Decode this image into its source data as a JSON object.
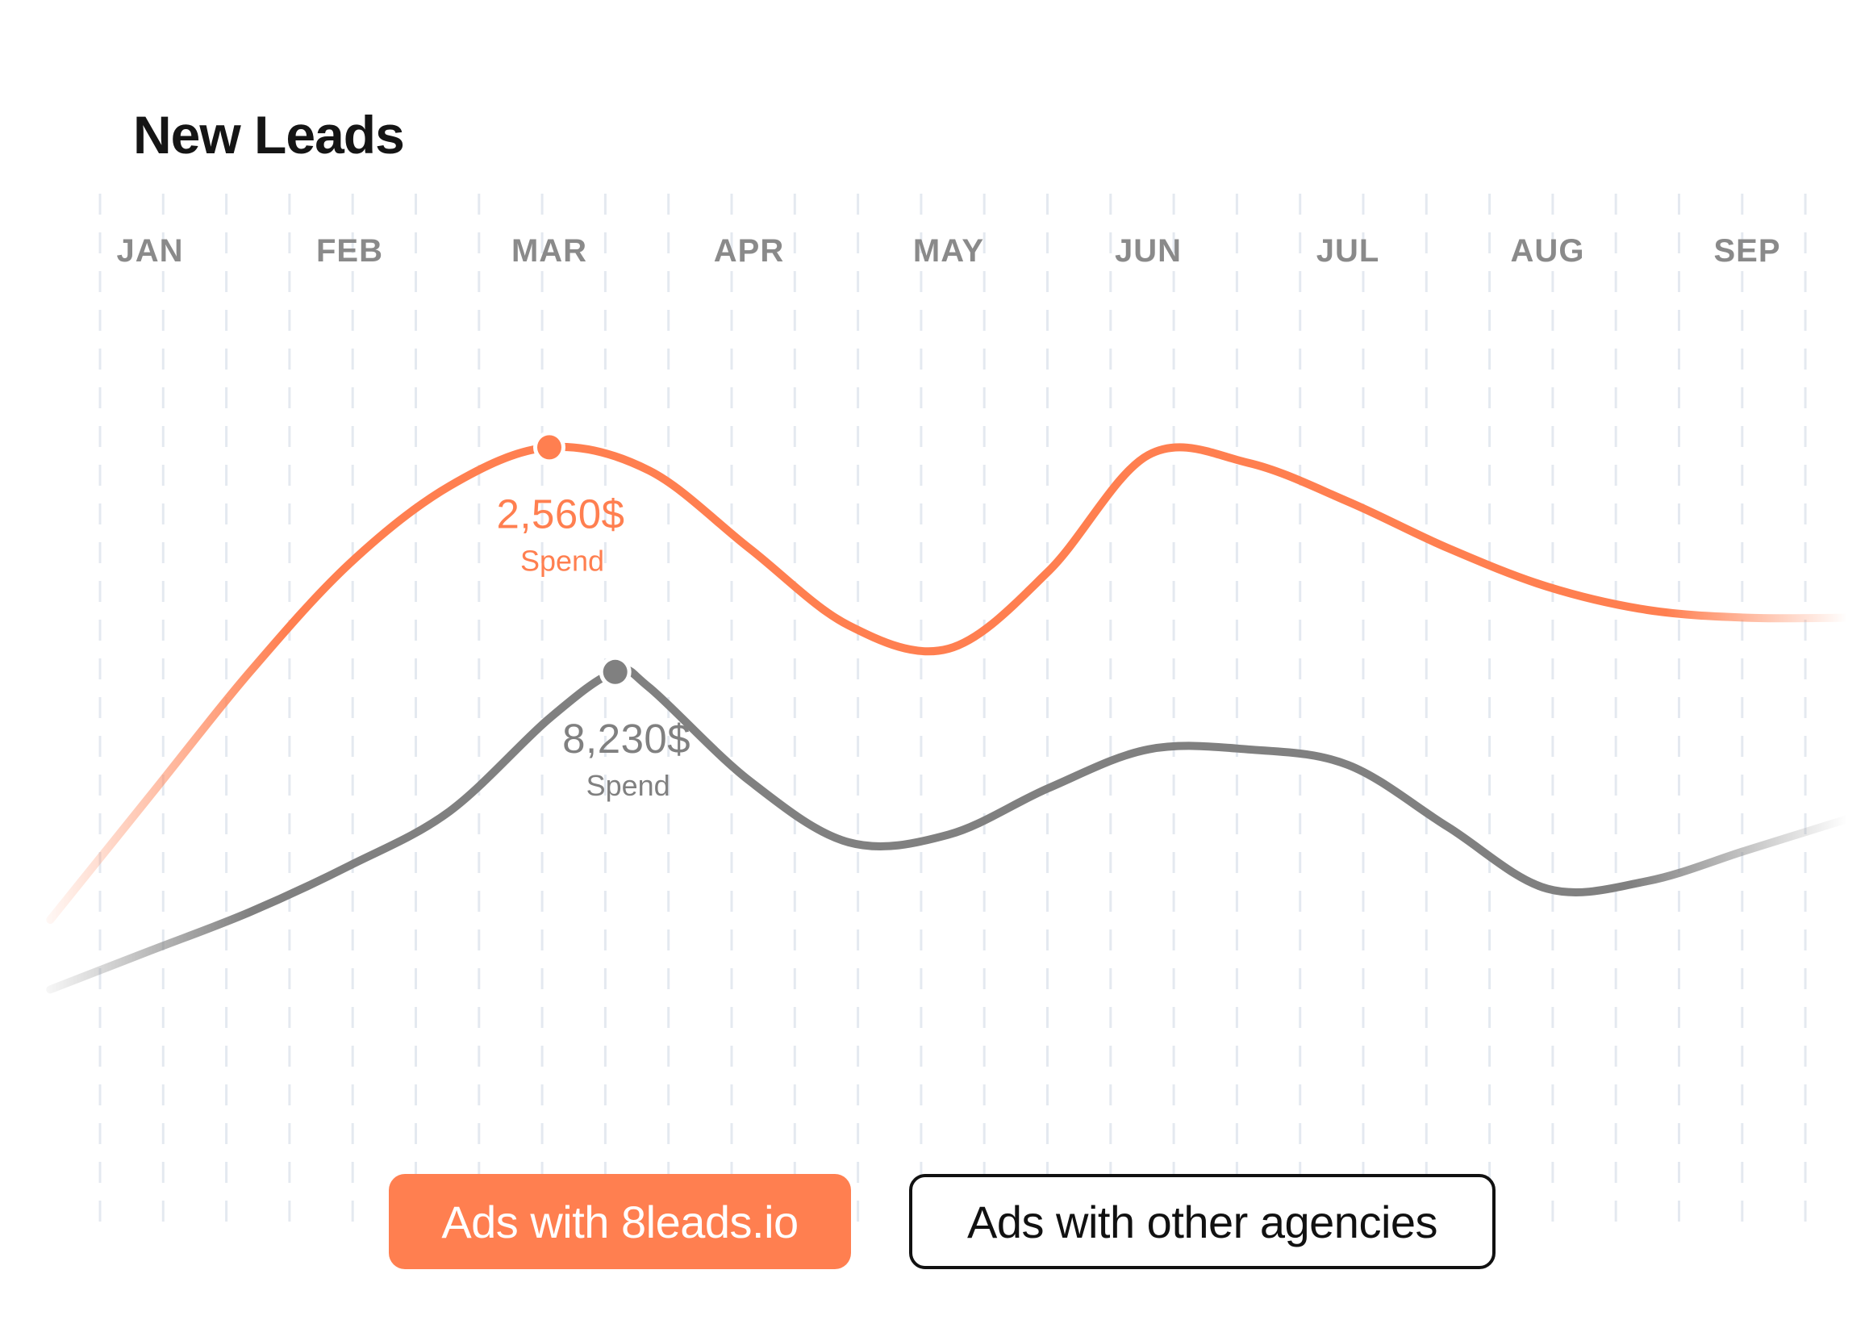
{
  "chart_data": {
    "type": "line",
    "title": "New Leads",
    "categories": [
      "JAN",
      "FEB",
      "MAR",
      "APR",
      "MAY",
      "JUN",
      "JUL",
      "AUG",
      "SEP"
    ],
    "series": [
      {
        "name": "Ads with 8leads.io",
        "color": "#ff7f50",
        "x": [
          -0.5,
          0.0,
          0.5,
          1.0,
          1.5,
          2.0,
          2.5,
          3.0,
          3.5,
          4.0,
          4.5,
          5.0,
          5.5,
          6.0,
          6.5,
          7.0,
          7.5,
          8.0,
          8.5
        ],
        "values": [
          25,
          41,
          57,
          71,
          81,
          86,
          83,
          73,
          63,
          60,
          70,
          85,
          84,
          79,
          73,
          68,
          65,
          64,
          64
        ],
        "highlight": {
          "index": 5,
          "value_label": "2,560$",
          "sub_label": "Spend"
        }
      },
      {
        "name": "Ads with other agencies",
        "color": "#808080",
        "x": [
          -0.5,
          0.0,
          0.5,
          1.0,
          1.5,
          2.0,
          2.33,
          2.5,
          3.0,
          3.5,
          4.0,
          4.5,
          5.0,
          5.5,
          6.0,
          6.5,
          7.0,
          7.5,
          8.0,
          8.5
        ],
        "values": [
          16,
          21,
          26,
          32,
          39,
          51,
          57,
          55,
          43,
          35,
          36,
          42,
          47,
          47,
          45,
          37,
          29,
          30,
          34,
          38
        ],
        "highlight": {
          "index": 6,
          "value_label": "8,230$",
          "sub_label": "Spend"
        }
      }
    ],
    "ylim": [
      0,
      100
    ],
    "xlabel": "",
    "ylabel": "",
    "grid": true,
    "legend_position": "bottom-center"
  },
  "legend": {
    "primary_label": "Ads with 8leads.io",
    "secondary_label": "Ads with other agencies"
  }
}
